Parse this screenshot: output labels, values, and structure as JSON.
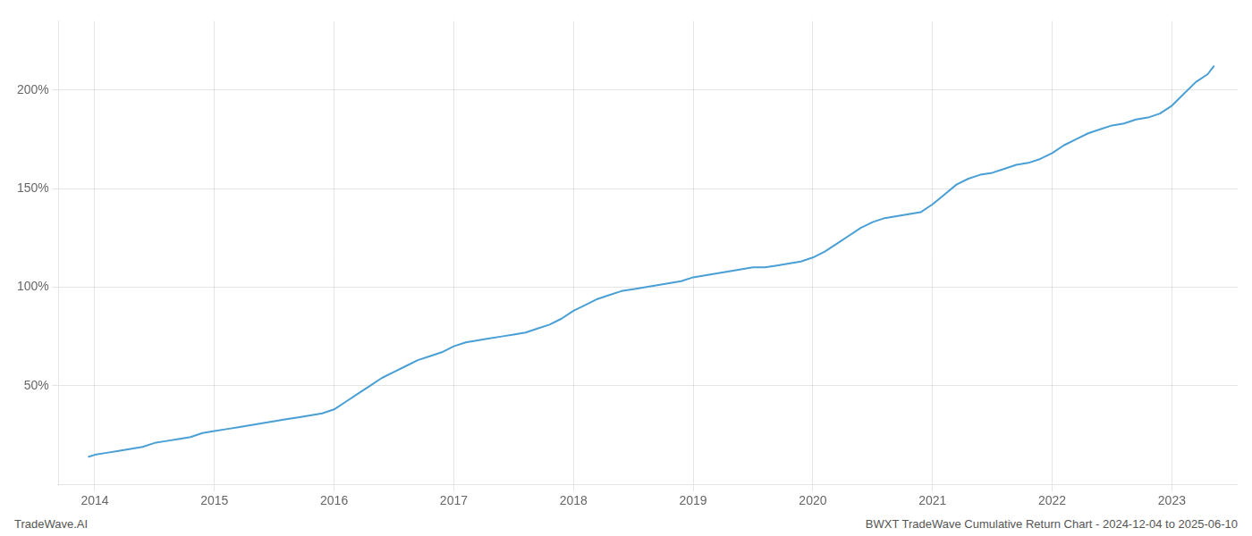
{
  "chart_data": {
    "type": "line",
    "annotations": [
      "TradeWave.AI",
      "BWXT TradeWave Cumulative Return Chart - 2024-12-04 to 2025-06-10"
    ],
    "color": "#4a9fd4",
    "grid": true,
    "x": [
      2013.95,
      2014.0,
      2014.1,
      2014.2,
      2014.3,
      2014.4,
      2014.5,
      2014.6,
      2014.7,
      2014.8,
      2014.9,
      2015.0,
      2015.1,
      2015.2,
      2015.3,
      2015.4,
      2015.5,
      2015.6,
      2015.7,
      2015.8,
      2015.9,
      2016.0,
      2016.1,
      2016.2,
      2016.3,
      2016.4,
      2016.5,
      2016.6,
      2016.7,
      2016.8,
      2016.9,
      2017.0,
      2017.1,
      2017.2,
      2017.3,
      2017.4,
      2017.5,
      2017.6,
      2017.7,
      2017.8,
      2017.9,
      2018.0,
      2018.1,
      2018.2,
      2018.3,
      2018.4,
      2018.5,
      2018.6,
      2018.7,
      2018.8,
      2018.9,
      2019.0,
      2019.1,
      2019.2,
      2019.3,
      2019.4,
      2019.5,
      2019.6,
      2019.7,
      2019.8,
      2019.9,
      2020.0,
      2020.1,
      2020.2,
      2020.3,
      2020.4,
      2020.5,
      2020.6,
      2020.7,
      2020.8,
      2020.9,
      2021.0,
      2021.1,
      2021.2,
      2021.3,
      2021.4,
      2021.5,
      2021.6,
      2021.7,
      2021.8,
      2021.9,
      2022.0,
      2022.1,
      2022.2,
      2022.3,
      2022.4,
      2022.5,
      2022.6,
      2022.7,
      2022.8,
      2022.9,
      2023.0,
      2023.1,
      2023.2,
      2023.3,
      2023.35
    ],
    "values": [
      14,
      15,
      16,
      17,
      18,
      19,
      21,
      22,
      23,
      24,
      26,
      27,
      28,
      29,
      30,
      31,
      32,
      33,
      34,
      35,
      36,
      38,
      42,
      46,
      50,
      54,
      57,
      60,
      63,
      65,
      67,
      70,
      72,
      73,
      74,
      75,
      76,
      77,
      79,
      81,
      84,
      88,
      91,
      94,
      96,
      98,
      99,
      100,
      101,
      102,
      103,
      105,
      106,
      107,
      108,
      109,
      110,
      110,
      111,
      112,
      113,
      115,
      118,
      122,
      126,
      130,
      133,
      135,
      136,
      137,
      138,
      142,
      147,
      152,
      155,
      157,
      158,
      160,
      162,
      163,
      165,
      168,
      172,
      175,
      178,
      180,
      182,
      183,
      185,
      186,
      188,
      192,
      198,
      204,
      208,
      212
    ],
    "xlim": [
      2013.7,
      2023.55
    ],
    "ylim": [
      0,
      235
    ],
    "xticks": [
      2014,
      2015,
      2016,
      2017,
      2018,
      2019,
      2020,
      2021,
      2022,
      2023
    ],
    "yticks": [
      {
        "value": 50,
        "label": "50%"
      },
      {
        "value": 100,
        "label": "100%"
      },
      {
        "value": 150,
        "label": "150%"
      },
      {
        "value": 200,
        "label": "200%"
      }
    ]
  }
}
